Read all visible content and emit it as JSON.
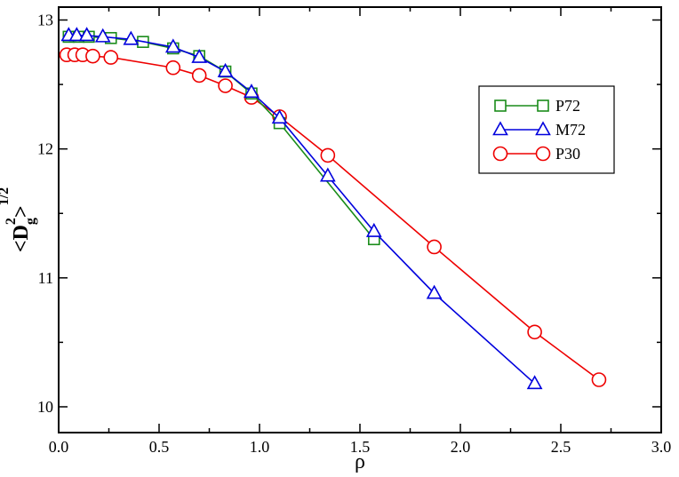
{
  "chart_data": {
    "type": "line",
    "title": "",
    "xlabel": "ρ",
    "ylabel": "<D_g^2>^{1/2}",
    "ylabel_parts": {
      "open": "<D",
      "sup": "2",
      "sub": "g",
      "close": ">",
      "power": "1/2"
    },
    "xlim": [
      0.0,
      3.0
    ],
    "ylim": [
      9.8,
      13.1
    ],
    "x_ticks": [
      0.0,
      0.5,
      1.0,
      1.5,
      2.0,
      2.5,
      3.0
    ],
    "x_tick_labels": [
      "0.0",
      "0.5",
      "1.0",
      "1.5",
      "2.0",
      "2.5",
      "3.0"
    ],
    "y_ticks": [
      10,
      11,
      12,
      13
    ],
    "y_tick_labels": [
      "10",
      "11",
      "12",
      "13"
    ],
    "grid": false,
    "legend_position": "right",
    "series": [
      {
        "name": "P72",
        "marker": "square",
        "color": "#1a8c1a",
        "points": [
          [
            0.05,
            12.87
          ],
          [
            0.1,
            12.87
          ],
          [
            0.15,
            12.87
          ],
          [
            0.26,
            12.86
          ],
          [
            0.42,
            12.83
          ],
          [
            0.57,
            12.78
          ],
          [
            0.7,
            12.72
          ],
          [
            0.83,
            12.6
          ],
          [
            0.96,
            12.43
          ],
          [
            1.1,
            12.2
          ],
          [
            1.57,
            11.3
          ]
        ]
      },
      {
        "name": "M72",
        "marker": "triangle",
        "color": "#0000dd",
        "points": [
          [
            0.05,
            12.88
          ],
          [
            0.09,
            12.88
          ],
          [
            0.14,
            12.88
          ],
          [
            0.22,
            12.87
          ],
          [
            0.36,
            12.85
          ],
          [
            0.57,
            12.79
          ],
          [
            0.7,
            12.71
          ],
          [
            0.83,
            12.6
          ],
          [
            0.96,
            12.44
          ],
          [
            1.1,
            12.24
          ],
          [
            1.34,
            11.79
          ],
          [
            1.57,
            11.36
          ],
          [
            1.87,
            10.88
          ],
          [
            2.37,
            10.18
          ]
        ]
      },
      {
        "name": "P30",
        "marker": "circle",
        "color": "#ee0000",
        "points": [
          [
            0.04,
            12.73
          ],
          [
            0.08,
            12.73
          ],
          [
            0.12,
            12.73
          ],
          [
            0.17,
            12.72
          ],
          [
            0.26,
            12.71
          ],
          [
            0.57,
            12.63
          ],
          [
            0.7,
            12.57
          ],
          [
            0.83,
            12.49
          ],
          [
            0.96,
            12.4
          ],
          [
            1.1,
            12.25
          ],
          [
            1.34,
            11.95
          ],
          [
            1.87,
            11.24
          ],
          [
            2.37,
            10.58
          ],
          [
            2.69,
            10.21
          ]
        ]
      }
    ]
  }
}
